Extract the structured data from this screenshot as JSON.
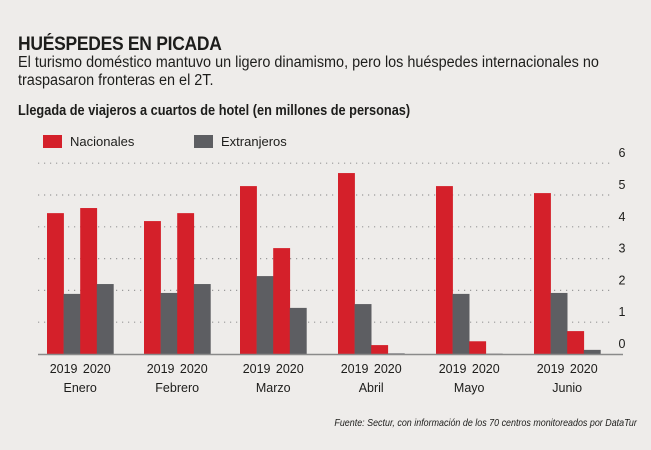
{
  "header": {
    "title": "HUÉSPEDES EN PICADA",
    "subtitle": "El turismo doméstico mantuvo un ligero dinamismo, pero los huéspedes internacionales no traspasaron fronteras en el 2T."
  },
  "source": "Fuente: Sectur, con información de los 70 centros monitoreados por DataTur",
  "colors": {
    "nacionales": "#d4202a",
    "extranjeros": "#5d5e62",
    "background": "#eeecea",
    "grid": "#9a9a9a",
    "axis": "#8a8a8a"
  },
  "chart_data": {
    "type": "bar",
    "title": "Llegada de viajeros a cuartos de hotel (en millones de personas)",
    "xlabel": "",
    "ylabel": "",
    "ylim": [
      0,
      6
    ],
    "yticks": [
      0,
      1,
      2,
      3,
      4,
      5,
      6
    ],
    "y_axis_position": "right",
    "grid": true,
    "legend_position": "top-left",
    "categories": [
      "Enero",
      "Febrero",
      "Marzo",
      "Abril",
      "Mayo",
      "Junio"
    ],
    "subcategories": [
      "2019",
      "2020"
    ],
    "series": [
      {
        "name": "Nacionales",
        "key": "nacionales",
        "values_2019": [
          4.43,
          4.18,
          5.28,
          5.69,
          5.28,
          5.06
        ],
        "values_2020": [
          4.59,
          4.43,
          3.33,
          0.28,
          0.4,
          0.72
        ]
      },
      {
        "name": "Extranjeros",
        "key": "extranjeros",
        "values_2019": [
          1.89,
          1.92,
          2.45,
          1.57,
          1.89,
          1.92
        ],
        "values_2020": [
          2.2,
          2.2,
          1.45,
          0.02,
          0.01,
          0.13
        ]
      }
    ]
  }
}
